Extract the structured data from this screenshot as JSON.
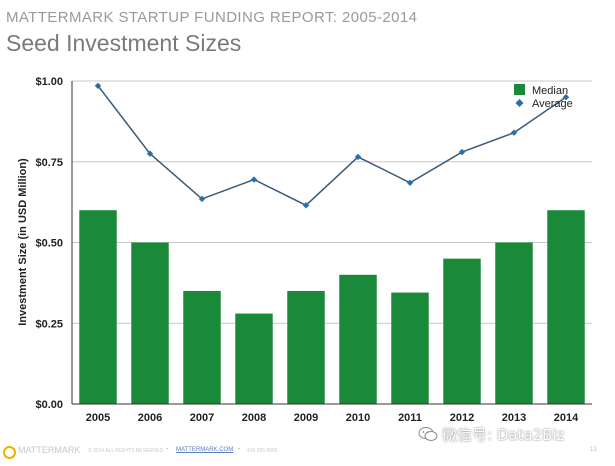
{
  "header": {
    "report_title": "MATTERMARK STARTUP FUNDING REPORT: 2005-2014",
    "slide_title": "Seed Investment Sizes"
  },
  "colors": {
    "bar": "#1a8a3a",
    "line": "#3a5a78",
    "marker": "#2a6ea8",
    "grid": "#c8c8c8",
    "title_gray": "#9a9a9a"
  },
  "chart_data": {
    "type": "bar",
    "title": "",
    "xlabel": "",
    "ylabel": "Investment Size (in USD Million)",
    "categories": [
      "2005",
      "2006",
      "2007",
      "2008",
      "2009",
      "2010",
      "2011",
      "2012",
      "2013",
      "2014"
    ],
    "ylim": [
      0,
      1.0
    ],
    "yticks": [
      0,
      0.25,
      0.5,
      0.75,
      1.0
    ],
    "ytick_labels": [
      "$0.00",
      "$0.25",
      "$0.50",
      "$0.75",
      "$1.00"
    ],
    "grid": true,
    "legend_position": "top-right",
    "series": [
      {
        "name": "Median",
        "type": "bar",
        "color": "#1a8a3a",
        "values": [
          0.6,
          0.5,
          0.35,
          0.28,
          0.35,
          0.4,
          0.345,
          0.45,
          0.5,
          0.6
        ]
      },
      {
        "name": "Average",
        "type": "line",
        "color": "#3a5a78",
        "marker": "diamond",
        "values": [
          0.985,
          0.775,
          0.635,
          0.695,
          0.615,
          0.765,
          0.685,
          0.78,
          0.84,
          0.95
        ]
      }
    ]
  },
  "footer": {
    "logo_text": "MATTERMARK",
    "copyright": "© 2014 ALL RIGHTS RESERVED",
    "link": "MATTERMARK.COM",
    "phone": "415 555 5555",
    "page": "13"
  },
  "watermark": {
    "text": "微信号: Data2Biz",
    "icon": "wechat-icon"
  }
}
